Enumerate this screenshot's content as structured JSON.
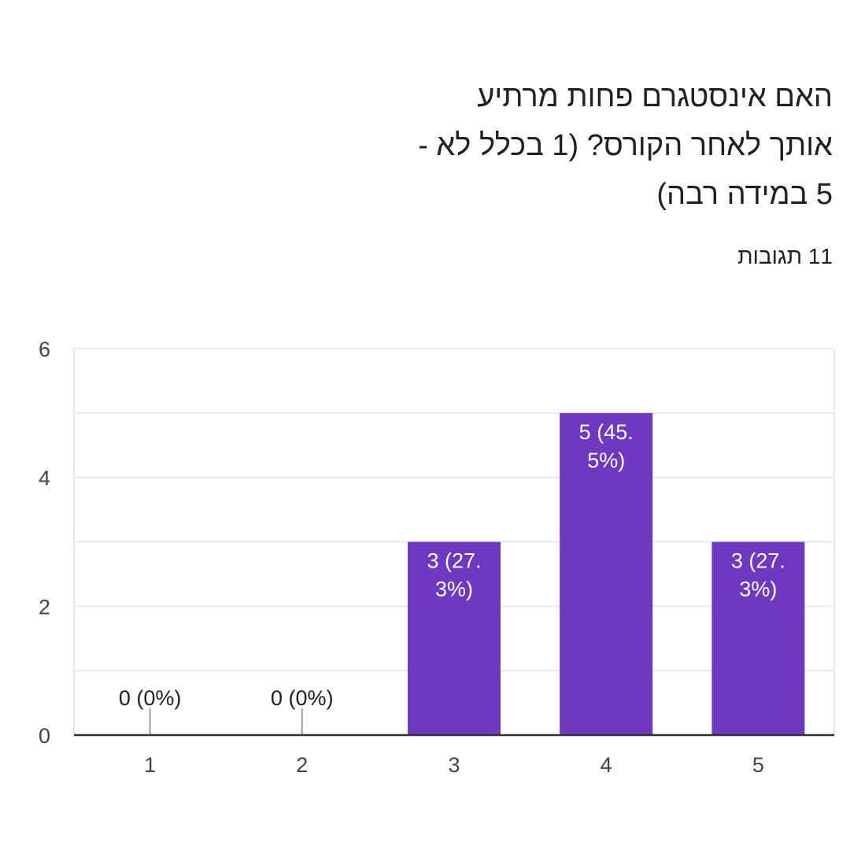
{
  "question": {
    "lines": [
      "האם אינסטגרם פחות מרתיע",
      "אותך לאחר הקורס? (1 בכלל לא -",
      "5 במידה רבה)"
    ]
  },
  "responses_label": "11 תגובות",
  "colors": {
    "bar": "#6f38c0",
    "grid": "#e9e9e9",
    "axis": "#333333",
    "zero_tick": "#9e9e9e",
    "label_on_bar": "#ffffff",
    "label_above": "#202124"
  },
  "chart_data": {
    "type": "bar",
    "categories": [
      "1",
      "2",
      "3",
      "4",
      "5"
    ],
    "values": [
      0,
      0,
      3,
      5,
      3
    ],
    "data_labels": [
      [
        "0 (0%)"
      ],
      [
        "0 (0%)"
      ],
      [
        "3 (27.",
        "3%)"
      ],
      [
        "5 (45.",
        "5%)"
      ],
      [
        "3 (27.",
        "3%)"
      ]
    ],
    "ylim": [
      0,
      6
    ],
    "yticks": [
      0,
      2,
      4,
      6
    ],
    "minor_gridlines": true,
    "xlabel": "",
    "ylabel": ""
  }
}
